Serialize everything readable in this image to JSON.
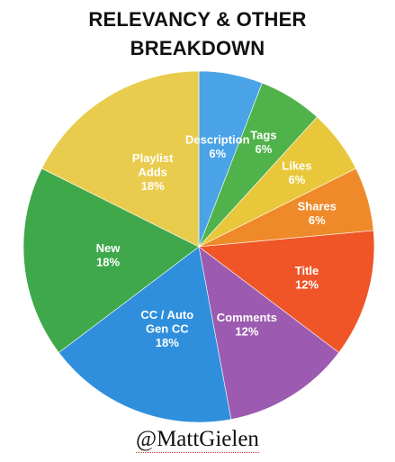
{
  "chart_data": {
    "type": "pie",
    "title_lines": [
      "RELEVANCY & OTHER",
      "BREAKDOWN"
    ],
    "slices": [
      {
        "name": "Description",
        "value": 6,
        "label_lines": [
          "Description",
          "6%"
        ],
        "color": "#4aa3e6"
      },
      {
        "name": "Tags",
        "value": 6,
        "label_lines": [
          "Tags",
          "6%"
        ],
        "color": "#4fb24a"
      },
      {
        "name": "Likes",
        "value": 6,
        "label_lines": [
          "Likes",
          "6%"
        ],
        "color": "#e8c83a"
      },
      {
        "name": "Shares",
        "value": 6,
        "label_lines": [
          "Shares",
          "6%"
        ],
        "color": "#ef8a2a"
      },
      {
        "name": "Title",
        "value": 12,
        "label_lines": [
          "Title",
          "12%"
        ],
        "color": "#ef5527"
      },
      {
        "name": "Comments",
        "value": 12,
        "label_lines": [
          "Comments",
          "12%"
        ],
        "color": "#9c5ab0"
      },
      {
        "name": "CC / Auto Gen CC",
        "value": 18,
        "label_lines": [
          "CC / Auto",
          "Gen CC",
          "18%"
        ],
        "color": "#2f8fdc"
      },
      {
        "name": "New",
        "value": 18,
        "label_lines": [
          "New",
          "18%"
        ],
        "color": "#3ea84b"
      },
      {
        "name": "Playlist Adds",
        "value": 18,
        "label_lines": [
          "Playlist",
          "Adds",
          "18%"
        ],
        "color": "#e9cc4e"
      }
    ]
  },
  "credit": "@MattGielen"
}
